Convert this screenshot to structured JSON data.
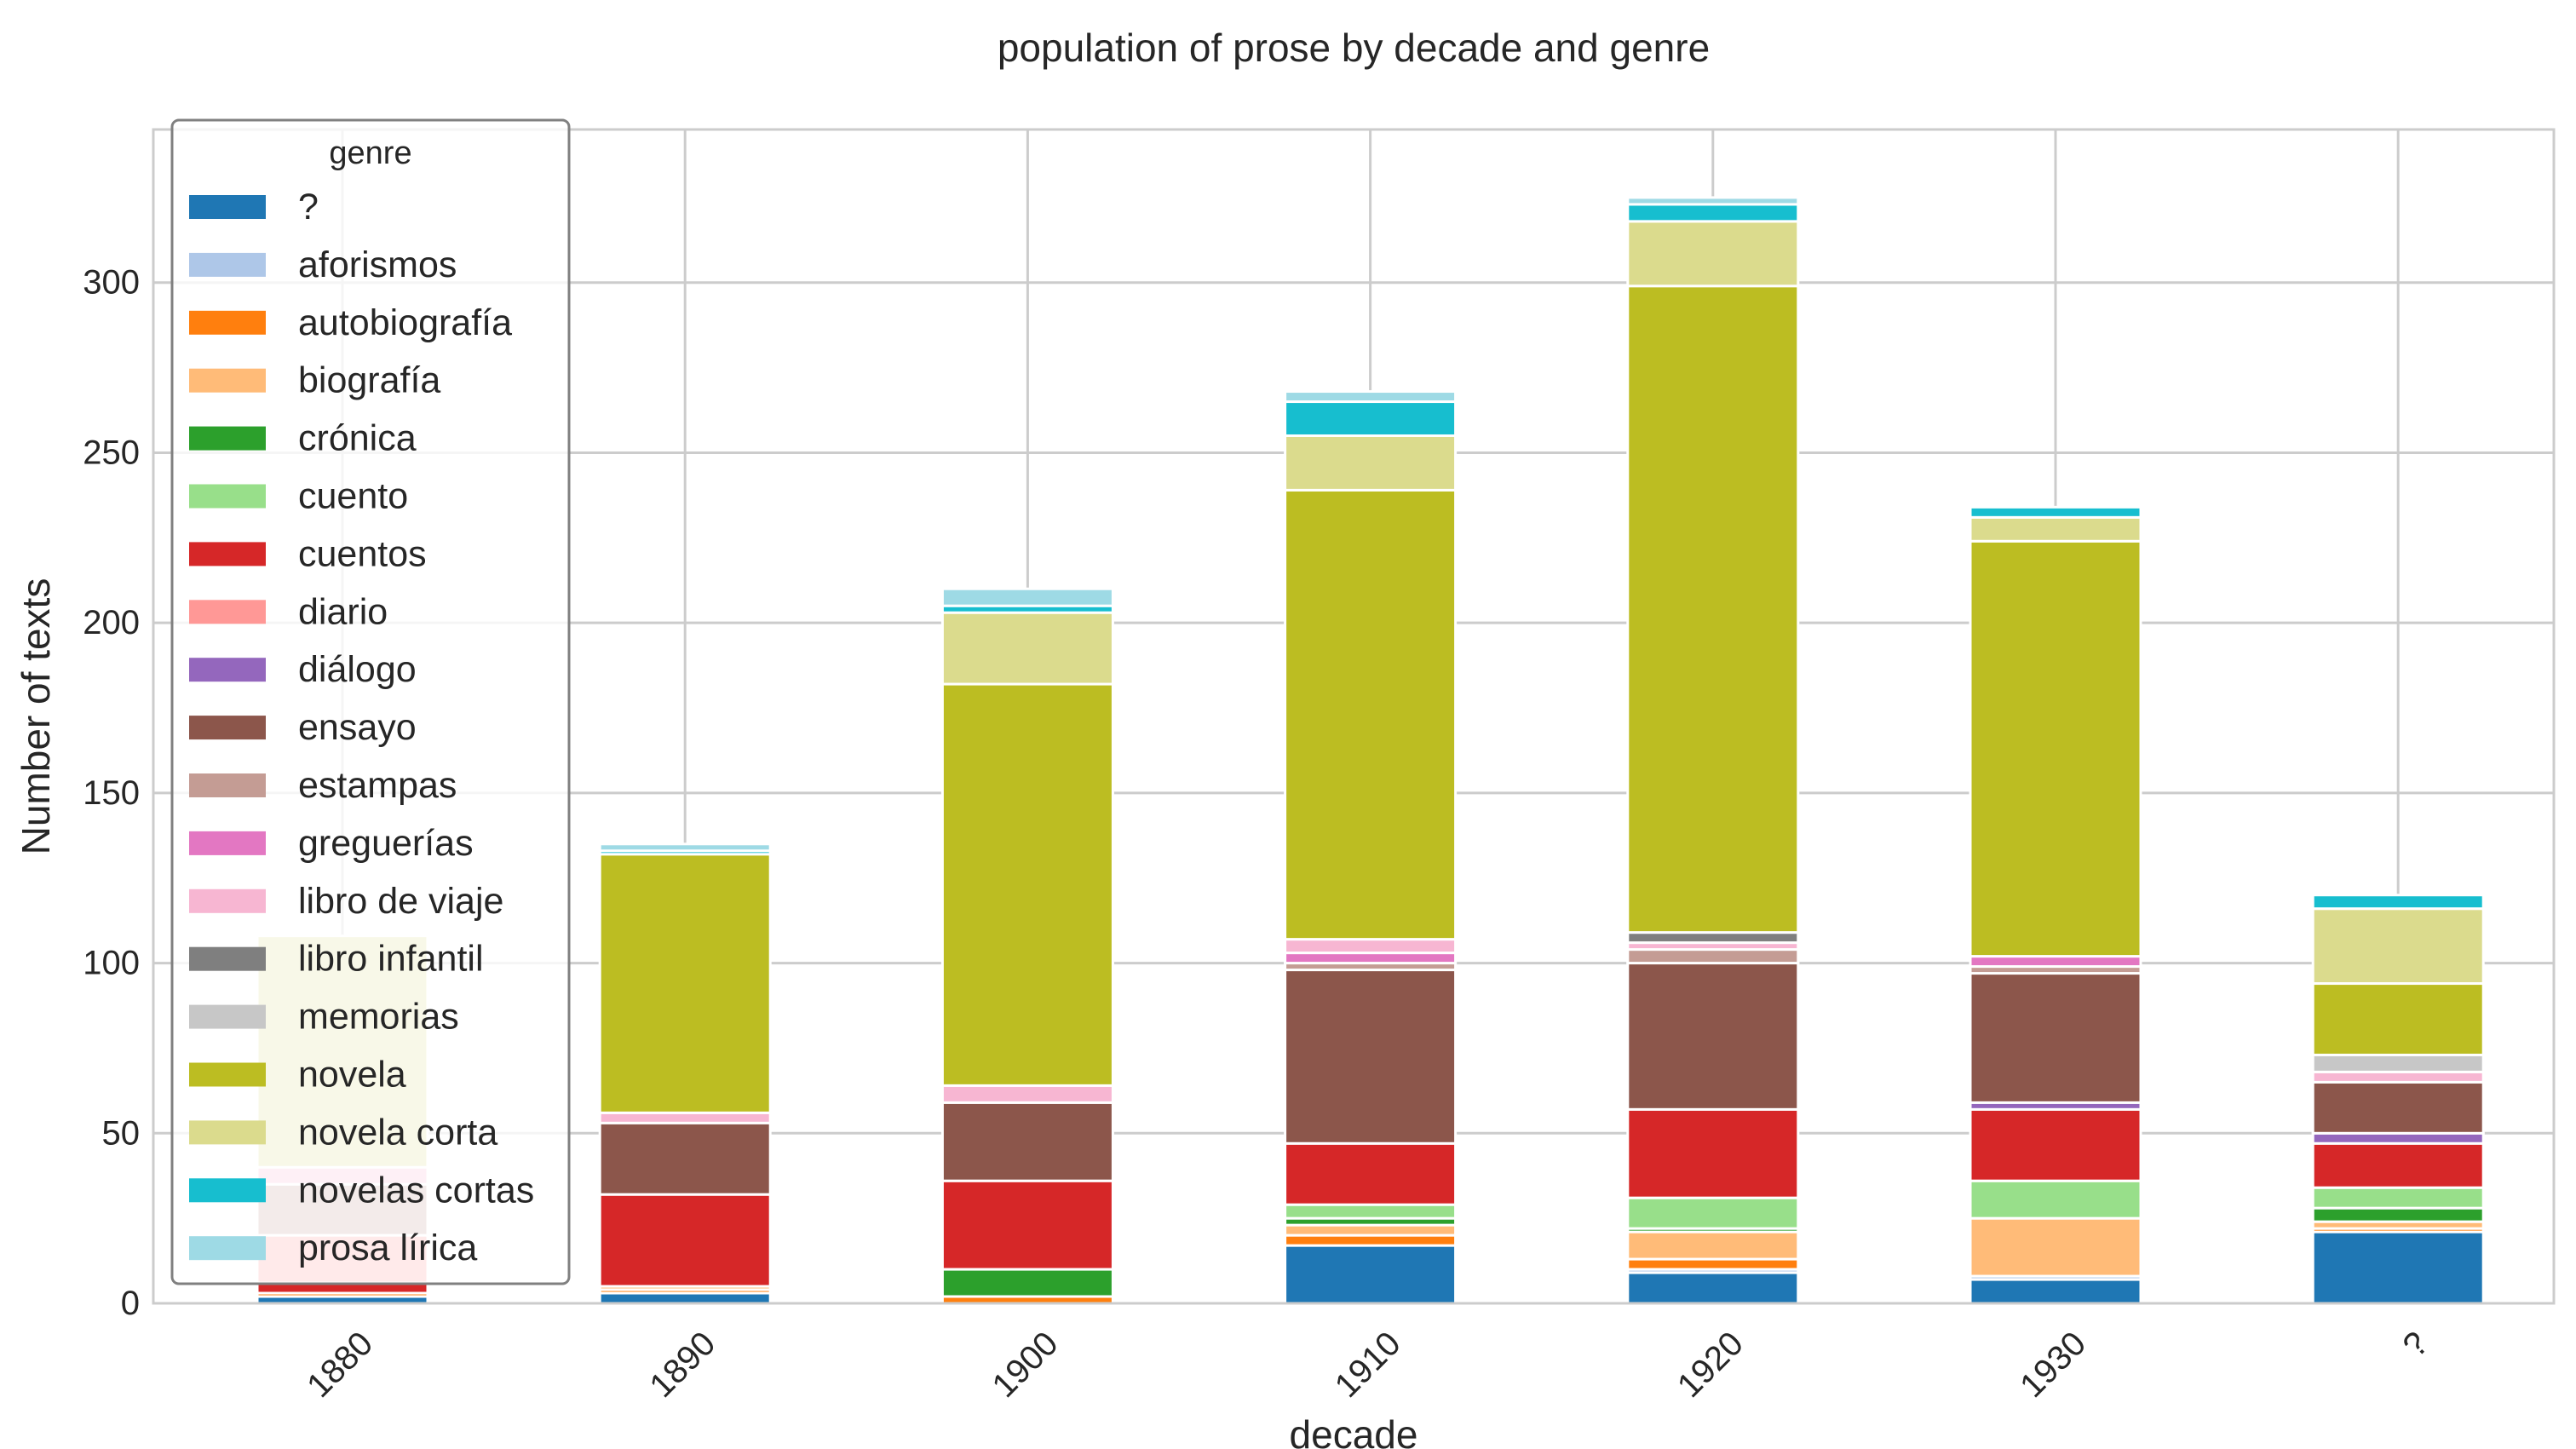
{
  "chart_data": {
    "type": "bar",
    "stacked": true,
    "title": "population of prose by decade and genre",
    "xlabel": "decade",
    "ylabel": "Number of texts",
    "ylim": [
      0,
      345
    ],
    "yticks": [
      0,
      50,
      100,
      150,
      200,
      250,
      300
    ],
    "grid": true,
    "legend": {
      "title": "genre",
      "placement": "upper-left"
    },
    "categories": [
      "1880",
      "1890",
      "1900",
      "1910",
      "1920",
      "1930",
      "?"
    ],
    "series": [
      {
        "name": "?",
        "color": "#1f77b4",
        "values": [
          2,
          3,
          0,
          17,
          9,
          7,
          21
        ]
      },
      {
        "name": "aforismos",
        "color": "#aec7e8",
        "values": [
          0,
          0,
          0,
          0,
          1,
          1,
          0
        ]
      },
      {
        "name": "autobiografía",
        "color": "#ff7f0e",
        "values": [
          1,
          1,
          2,
          3,
          3,
          0,
          1
        ]
      },
      {
        "name": "biografía",
        "color": "#ffbb78",
        "values": [
          0,
          1,
          0,
          3,
          8,
          17,
          2
        ]
      },
      {
        "name": "crónica",
        "color": "#2ca02c",
        "values": [
          0,
          0,
          8,
          2,
          1,
          0,
          4
        ]
      },
      {
        "name": "cuento",
        "color": "#98df8a",
        "values": [
          0,
          0,
          0,
          4,
          9,
          11,
          6
        ]
      },
      {
        "name": "cuentos",
        "color": "#d62728",
        "values": [
          3,
          27,
          26,
          18,
          26,
          21,
          13
        ]
      },
      {
        "name": "diario",
        "color": "#ff9896",
        "values": [
          14,
          0,
          0,
          0,
          0,
          0,
          0
        ]
      },
      {
        "name": "diálogo",
        "color": "#9467bd",
        "values": [
          0,
          0,
          0,
          0,
          0,
          2,
          3
        ]
      },
      {
        "name": "ensayo",
        "color": "#8c564b",
        "values": [
          0,
          21,
          23,
          51,
          43,
          38,
          15
        ]
      },
      {
        "name": "estampas",
        "color": "#c49c94",
        "values": [
          15,
          0,
          0,
          2,
          4,
          2,
          0
        ]
      },
      {
        "name": "greguerías",
        "color": "#e377c2",
        "values": [
          0,
          0,
          0,
          3,
          0,
          3,
          0
        ]
      },
      {
        "name": "libro de viaje",
        "color": "#f7b6d2",
        "values": [
          5,
          3,
          5,
          4,
          2,
          0,
          3
        ]
      },
      {
        "name": "libro infantil",
        "color": "#7f7f7f",
        "values": [
          0,
          0,
          0,
          0,
          3,
          0,
          0
        ]
      },
      {
        "name": "memorias",
        "color": "#c7c7c7",
        "values": [
          0,
          0,
          0,
          0,
          0,
          0,
          5
        ]
      },
      {
        "name": "novela",
        "color": "#bcbd22",
        "values": [
          0,
          76,
          118,
          132,
          190,
          122,
          21
        ]
      },
      {
        "name": "novela corta",
        "color": "#dbdb8d",
        "values": [
          68,
          0,
          21,
          16,
          19,
          7,
          22
        ]
      },
      {
        "name": "novelas cortas",
        "color": "#17becf",
        "values": [
          0,
          1,
          2,
          10,
          5,
          3,
          4
        ]
      },
      {
        "name": "prosa lírica",
        "color": "#9edae5",
        "values": [
          0,
          2,
          5,
          3,
          2,
          0,
          0
        ]
      }
    ]
  }
}
